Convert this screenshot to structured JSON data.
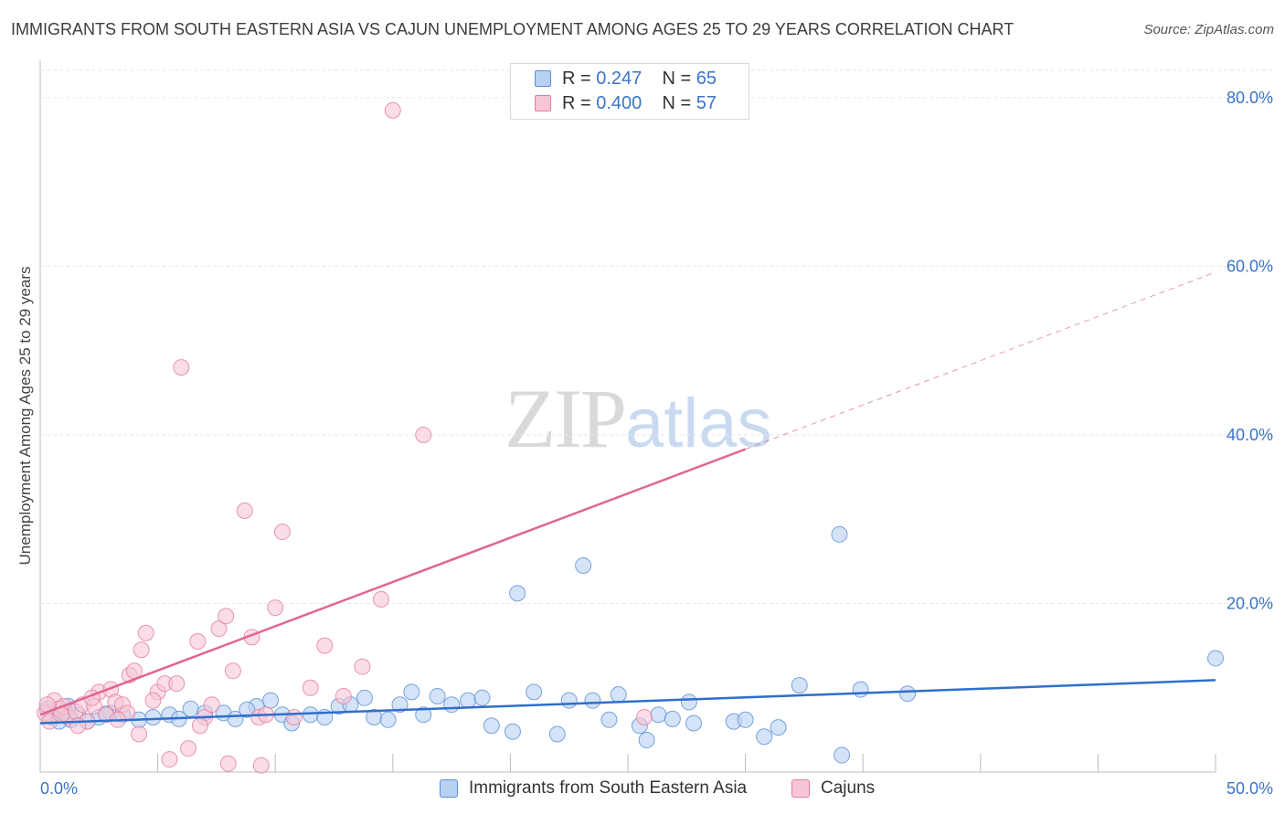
{
  "chart_data": {
    "type": "scatter",
    "title": "IMMIGRANTS FROM SOUTH EASTERN ASIA VS CAJUN UNEMPLOYMENT AMONG AGES 25 TO 29 YEARS CORRELATION CHART",
    "source": "Source: ZipAtlas.com",
    "xlabel": "",
    "ylabel": "Unemployment Among Ages 25 to 29 years",
    "xlim": [
      0,
      50
    ],
    "ylim": [
      0,
      84
    ],
    "x_tick_labels": [
      "0.0%",
      "50.0%"
    ],
    "y_ticks": [
      20,
      40,
      60,
      80
    ],
    "y_tick_labels": [
      "20.0%",
      "40.0%",
      "60.0%",
      "80.0%"
    ],
    "grid": true,
    "legend_position": "top-center",
    "watermark": {
      "zip": "ZIP",
      "atlas": "atlas"
    },
    "colors": {
      "blue_fill": "#b8d1f2",
      "blue_stroke": "#5b8fd6",
      "blue_line": "#2e6fcc",
      "pink_fill": "#f7c6d6",
      "pink_stroke": "#e57d9f",
      "pink_line": "#e06592",
      "tick_label": "#3a74c8",
      "grid": "#e6e6e6"
    },
    "series": [
      {
        "name": "Immigrants from South Eastern Asia",
        "r_label": "R = ",
        "r_value": "0.247",
        "n_label": "N = ",
        "n_value": "65",
        "trend": {
          "x0": 0,
          "y0": 5.8,
          "x1": 50,
          "y1": 10.9,
          "dashed_until": 50
        },
        "points": [
          [
            0.3,
            7.5
          ],
          [
            0.5,
            6.5
          ],
          [
            0.8,
            6.0
          ],
          [
            1.0,
            7.0
          ],
          [
            1.3,
            6.2
          ],
          [
            1.6,
            6.8
          ],
          [
            2.0,
            6.0
          ],
          [
            2.5,
            6.5
          ],
          [
            3.0,
            7.0
          ],
          [
            3.5,
            6.8
          ],
          [
            4.2,
            6.2
          ],
          [
            4.8,
            6.5
          ],
          [
            5.5,
            6.8
          ],
          [
            5.9,
            6.3
          ],
          [
            6.4,
            7.5
          ],
          [
            7.0,
            7.0
          ],
          [
            7.8,
            7.0
          ],
          [
            8.3,
            6.3
          ],
          [
            9.2,
            7.8
          ],
          [
            9.8,
            8.5
          ],
          [
            10.3,
            6.8
          ],
          [
            10.7,
            5.8
          ],
          [
            11.5,
            6.8
          ],
          [
            12.1,
            6.5
          ],
          [
            12.7,
            7.8
          ],
          [
            13.2,
            8.0
          ],
          [
            13.8,
            8.8
          ],
          [
            14.2,
            6.5
          ],
          [
            14.8,
            6.2
          ],
          [
            15.3,
            8.0
          ],
          [
            15.8,
            9.5
          ],
          [
            16.3,
            6.8
          ],
          [
            16.9,
            9.0
          ],
          [
            17.5,
            8.0
          ],
          [
            18.2,
            8.5
          ],
          [
            18.8,
            8.8
          ],
          [
            19.2,
            5.5
          ],
          [
            20.1,
            4.8
          ],
          [
            20.3,
            21.2
          ],
          [
            21.0,
            9.5
          ],
          [
            22.0,
            4.5
          ],
          [
            22.5,
            8.5
          ],
          [
            23.1,
            24.5
          ],
          [
            23.5,
            8.5
          ],
          [
            24.2,
            6.2
          ],
          [
            24.6,
            9.2
          ],
          [
            25.5,
            5.5
          ],
          [
            25.8,
            3.8
          ],
          [
            26.3,
            6.8
          ],
          [
            26.9,
            6.3
          ],
          [
            27.6,
            8.3
          ],
          [
            27.8,
            5.8
          ],
          [
            29.5,
            6.0
          ],
          [
            30.0,
            6.2
          ],
          [
            30.8,
            4.2
          ],
          [
            31.4,
            5.3
          ],
          [
            32.3,
            10.3
          ],
          [
            34.0,
            28.2
          ],
          [
            34.1,
            2.0
          ],
          [
            34.9,
            9.8
          ],
          [
            36.9,
            9.3
          ],
          [
            50.0,
            13.5
          ],
          [
            1.2,
            7.8
          ],
          [
            2.8,
            6.9
          ],
          [
            8.8,
            7.4
          ]
        ]
      },
      {
        "name": "Cajuns",
        "r_label": "R = ",
        "r_value": "0.400",
        "n_label": "N = ",
        "n_value": "57",
        "trend": {
          "x0": 0,
          "y0": 6.8,
          "x1": 30,
          "y1": 38.3,
          "dashed_until": 50
        },
        "points": [
          [
            0.2,
            7.0
          ],
          [
            0.4,
            6.0
          ],
          [
            0.6,
            8.5
          ],
          [
            0.8,
            7.5
          ],
          [
            1.0,
            7.8
          ],
          [
            1.2,
            6.5
          ],
          [
            1.5,
            7.2
          ],
          [
            1.8,
            8.0
          ],
          [
            2.0,
            6.0
          ],
          [
            2.3,
            7.8
          ],
          [
            2.5,
            9.5
          ],
          [
            2.8,
            6.8
          ],
          [
            3.0,
            9.8
          ],
          [
            3.2,
            8.3
          ],
          [
            3.5,
            8.0
          ],
          [
            3.7,
            7.0
          ],
          [
            3.8,
            11.5
          ],
          [
            4.0,
            12.0
          ],
          [
            4.3,
            14.5
          ],
          [
            4.5,
            16.5
          ],
          [
            5.0,
            9.5
          ],
          [
            5.3,
            10.5
          ],
          [
            5.8,
            10.5
          ],
          [
            6.0,
            48.0
          ],
          [
            6.3,
            2.8
          ],
          [
            6.7,
            15.5
          ],
          [
            7.0,
            6.5
          ],
          [
            7.3,
            8.0
          ],
          [
            7.6,
            17.0
          ],
          [
            7.9,
            18.5
          ],
          [
            8.2,
            12.0
          ],
          [
            8.7,
            31.0
          ],
          [
            9.0,
            16.0
          ],
          [
            9.3,
            6.5
          ],
          [
            9.6,
            6.8
          ],
          [
            10.0,
            19.5
          ],
          [
            10.3,
            28.5
          ],
          [
            10.8,
            6.5
          ],
          [
            11.5,
            10.0
          ],
          [
            12.1,
            15.0
          ],
          [
            12.9,
            9.0
          ],
          [
            13.7,
            12.5
          ],
          [
            14.5,
            20.5
          ],
          [
            15.0,
            78.5
          ],
          [
            16.3,
            40.0
          ],
          [
            25.7,
            6.5
          ],
          [
            5.5,
            1.5
          ],
          [
            8.0,
            1.0
          ],
          [
            9.4,
            0.8
          ],
          [
            4.2,
            4.5
          ],
          [
            6.8,
            5.5
          ],
          [
            1.6,
            5.5
          ],
          [
            0.9,
            6.8
          ],
          [
            2.2,
            8.8
          ],
          [
            3.3,
            6.2
          ],
          [
            4.8,
            8.5
          ],
          [
            0.3,
            8.0
          ]
        ]
      }
    ]
  }
}
